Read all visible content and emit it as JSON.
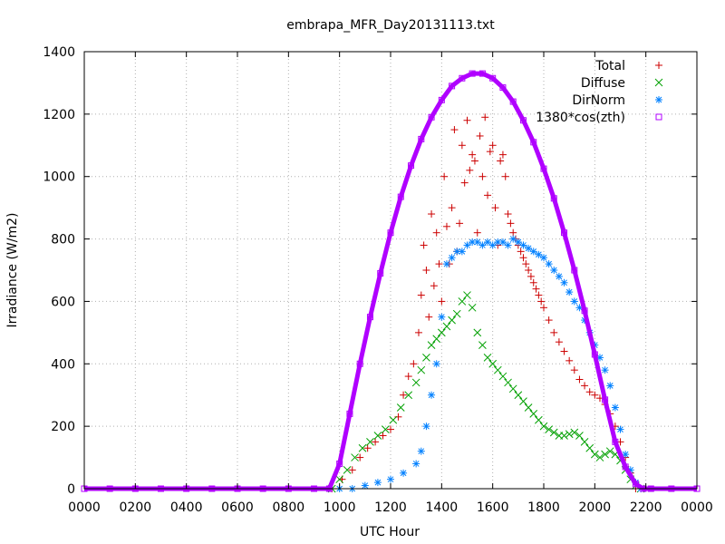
{
  "chart_data": {
    "type": "scatter",
    "title": "embrapa_MFR_Day20131113.txt",
    "xlabel": "UTC Hour",
    "ylabel": "Irradiance (W/m2)",
    "xlim": [
      0,
      24
    ],
    "ylim": [
      0,
      1400
    ],
    "x_tick_labels": [
      "0000",
      "0200",
      "0400",
      "0600",
      "0800",
      "1000",
      "1200",
      "1400",
      "1600",
      "1800",
      "2000",
      "2200",
      "0000"
    ],
    "y_tick_labels": [
      "0",
      "200",
      "400",
      "600",
      "800",
      "1000",
      "1200",
      "1400"
    ],
    "grid": true,
    "legend_position": "top-right",
    "series": [
      {
        "name": "Total",
        "color": "#cc0000",
        "marker": "plus",
        "x": [
          9.7,
          10.1,
          10.5,
          10.8,
          11.1,
          11.4,
          11.7,
          12.0,
          12.3,
          12.5,
          12.7,
          12.9,
          13.1,
          13.2,
          13.3,
          13.4,
          13.5,
          13.6,
          13.7,
          13.8,
          13.9,
          14.0,
          14.1,
          14.2,
          14.3,
          14.4,
          14.5,
          14.6,
          14.7,
          14.8,
          14.9,
          15.0,
          15.1,
          15.2,
          15.3,
          15.4,
          15.5,
          15.6,
          15.7,
          15.8,
          15.9,
          16.0,
          16.1,
          16.2,
          16.3,
          16.4,
          16.5,
          16.6,
          16.7,
          16.8,
          16.9,
          17.0,
          17.1,
          17.2,
          17.3,
          17.4,
          17.5,
          17.6,
          17.7,
          17.8,
          17.9,
          18.0,
          18.2,
          18.4,
          18.6,
          18.8,
          19.0,
          19.2,
          19.4,
          19.6,
          19.8,
          20.0,
          20.2,
          20.4,
          20.6,
          20.8,
          21.0,
          21.2,
          21.4,
          21.6,
          21.8
        ],
        "y": [
          0,
          30,
          60,
          100,
          130,
          150,
          170,
          190,
          230,
          300,
          360,
          400,
          500,
          620,
          780,
          700,
          550,
          880,
          650,
          820,
          720,
          600,
          1000,
          840,
          720,
          900,
          1150,
          760,
          850,
          1100,
          980,
          1180,
          1020,
          1070,
          1050,
          820,
          1130,
          1000,
          1190,
          940,
          1080,
          1100,
          900,
          780,
          1050,
          1070,
          1000,
          880,
          850,
          820,
          800,
          780,
          760,
          740,
          720,
          700,
          680,
          660,
          640,
          620,
          600,
          580,
          540,
          500,
          470,
          440,
          410,
          380,
          350,
          330,
          310,
          300,
          290,
          270,
          240,
          200,
          150,
          100,
          50,
          0,
          0
        ]
      },
      {
        "name": "Diffuse",
        "color": "#00a000",
        "marker": "cross",
        "x": [
          9.7,
          10.0,
          10.3,
          10.6,
          10.9,
          11.2,
          11.5,
          11.8,
          12.1,
          12.4,
          12.7,
          13.0,
          13.2,
          13.4,
          13.6,
          13.8,
          14.0,
          14.2,
          14.4,
          14.6,
          14.8,
          15.0,
          15.2,
          15.4,
          15.6,
          15.8,
          16.0,
          16.2,
          16.4,
          16.6,
          16.8,
          17.0,
          17.2,
          17.4,
          17.6,
          17.8,
          18.0,
          18.2,
          18.4,
          18.6,
          18.8,
          19.0,
          19.2,
          19.4,
          19.6,
          19.8,
          20.0,
          20.2,
          20.4,
          20.6,
          20.8,
          21.0,
          21.2,
          21.4,
          21.6,
          21.8
        ],
        "y": [
          0,
          30,
          60,
          100,
          130,
          150,
          170,
          190,
          220,
          260,
          300,
          340,
          380,
          420,
          460,
          480,
          500,
          520,
          540,
          560,
          600,
          620,
          580,
          500,
          460,
          420,
          400,
          380,
          360,
          340,
          320,
          300,
          280,
          260,
          240,
          220,
          200,
          190,
          180,
          170,
          170,
          175,
          180,
          170,
          150,
          130,
          110,
          100,
          110,
          120,
          110,
          90,
          60,
          30,
          10,
          0
        ]
      },
      {
        "name": "DirNorm",
        "color": "#0080ff",
        "marker": "star",
        "x": [
          10.0,
          10.5,
          11.0,
          11.5,
          12.0,
          12.5,
          13.0,
          13.2,
          13.4,
          13.6,
          13.8,
          14.0,
          14.2,
          14.4,
          14.6,
          14.8,
          15.0,
          15.2,
          15.4,
          15.6,
          15.8,
          16.0,
          16.2,
          16.4,
          16.6,
          16.8,
          17.0,
          17.2,
          17.4,
          17.6,
          17.8,
          18.0,
          18.2,
          18.4,
          18.6,
          18.8,
          19.0,
          19.2,
          19.4,
          19.6,
          19.8,
          20.0,
          20.2,
          20.4,
          20.6,
          20.8,
          21.0,
          21.2,
          21.4,
          21.6,
          21.8
        ],
        "y": [
          0,
          0,
          10,
          20,
          30,
          50,
          80,
          120,
          200,
          300,
          400,
          550,
          720,
          740,
          760,
          760,
          780,
          790,
          790,
          780,
          790,
          780,
          790,
          790,
          780,
          800,
          790,
          780,
          770,
          760,
          750,
          740,
          720,
          700,
          680,
          660,
          630,
          600,
          580,
          540,
          500,
          460,
          420,
          380,
          330,
          260,
          190,
          110,
          60,
          20,
          0
        ]
      },
      {
        "name": "1380*cos(zth)",
        "color": "#b000ff",
        "marker": "square",
        "x": [
          0,
          1,
          2,
          3,
          4,
          5,
          6,
          7,
          8,
          9,
          9.6,
          10.0,
          10.4,
          10.8,
          11.2,
          11.6,
          12.0,
          12.4,
          12.8,
          13.2,
          13.6,
          14.0,
          14.4,
          14.8,
          15.2,
          15.6,
          16.0,
          16.4,
          16.8,
          17.2,
          17.6,
          18.0,
          18.4,
          18.8,
          19.2,
          19.6,
          20.0,
          20.4,
          20.8,
          21.2,
          21.6,
          21.9,
          22.2,
          23,
          24
        ],
        "y": [
          0,
          0,
          0,
          0,
          0,
          0,
          0,
          0,
          0,
          0,
          0,
          80,
          240,
          400,
          550,
          690,
          820,
          935,
          1035,
          1120,
          1190,
          1245,
          1290,
          1315,
          1330,
          1330,
          1315,
          1285,
          1240,
          1180,
          1110,
          1025,
          930,
          820,
          700,
          570,
          430,
          285,
          150,
          70,
          15,
          0,
          0,
          0,
          0
        ]
      }
    ]
  }
}
